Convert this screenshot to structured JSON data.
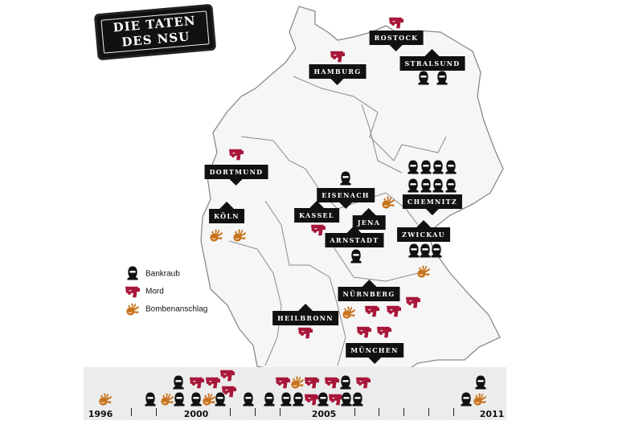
{
  "title": {
    "line1": "DIE TATEN",
    "line2": "DES NSU"
  },
  "legend": [
    {
      "icon": "mask-icon",
      "label": "Bankraub"
    },
    {
      "icon": "gun-icon",
      "label": "Mord"
    },
    {
      "icon": "bomb-icon",
      "label": "Bombenanschlag"
    }
  ],
  "colors": {
    "mord": "#a8173a",
    "bomb": "#c8721c",
    "bank": "#111111",
    "map_line": "#8a8a8a",
    "timeline_bg": "#ececec"
  },
  "cities": {
    "rostock": {
      "name": "ROSTOCK",
      "mord": 1
    },
    "hamburg": {
      "name": "HAMBURG",
      "mord": 1
    },
    "stralsund": {
      "name": "STRALSUND",
      "bankraub": 2
    },
    "dortmund": {
      "name": "DORTMUND",
      "mord": 1
    },
    "koeln": {
      "name": "KÖLN",
      "bombenanschlag": 2
    },
    "eisenach": {
      "name": "EISENACH",
      "bankraub": 1
    },
    "kassel": {
      "name": "KASSEL",
      "mord": 1
    },
    "jena": {
      "name": "JENA"
    },
    "arnstadt": {
      "name": "ARNSTADT",
      "bankraub": 1
    },
    "chemnitz": {
      "name": "CHEMNITZ",
      "bankraub": 8
    },
    "zwickau": {
      "name": "ZWICKAU",
      "bankraub": 3,
      "bombenanschlag": 1
    },
    "nuernberg": {
      "name": "NÜRNBERG",
      "mord": 3,
      "bombenanschlag": 1
    },
    "heilbronn": {
      "name": "HEILBRONN",
      "mord": 1
    },
    "muenchen": {
      "name": "MÜNCHEN",
      "mord": 2
    }
  },
  "timeline": {
    "years": [
      "1996",
      "2000",
      "2005",
      "2011"
    ]
  }
}
